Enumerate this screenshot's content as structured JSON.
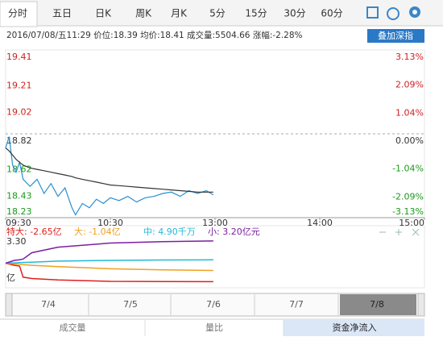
{
  "tabs": [
    "分时",
    "五日",
    "日K",
    "周K",
    "月K",
    "5分",
    "15分",
    "30分",
    "60分"
  ],
  "info": "2016/07/08/五11:29 价位:18.39 均价:18.41 成交量:5504.66 涨幅:-2.28%",
  "overlay_button": "叠加深指",
  "chart_data": [
    {
      "type": "line",
      "x": [
        0,
        2,
        4,
        6,
        8,
        10,
        14,
        18,
        22,
        26,
        30,
        34,
        38,
        40,
        44,
        48,
        52,
        56,
        60,
        65,
        70,
        75,
        80,
        85,
        90,
        95,
        100,
        105,
        110,
        115,
        119
      ],
      "xlim": [
        0,
        240
      ],
      "xticks": [
        {
          "value": 0,
          "label": "09:30"
        },
        {
          "value": 60,
          "label": "10:30"
        },
        {
          "value": 120,
          "label": "13:00"
        },
        {
          "value": 180,
          "label": "14:00"
        },
        {
          "value": 240,
          "label": "15:00"
        }
      ],
      "ylim": [
        18.23,
        19.41
      ],
      "yticks": [
        19.41,
        19.21,
        19.02,
        18.82,
        18.62,
        18.43,
        18.23
      ],
      "y2lim": [
        -3.13,
        3.13
      ],
      "y2ticks": [
        {
          "value": 3.13,
          "label": "3.13%"
        },
        {
          "value": 2.09,
          "label": "2.09%"
        },
        {
          "value": 1.04,
          "label": "1.04%"
        },
        {
          "value": 0,
          "label": "0.00%"
        },
        {
          "value": -1.04,
          "label": "-1.04%"
        },
        {
          "value": -2.09,
          "label": "-2.09%"
        },
        {
          "value": -3.13,
          "label": "-3.13%"
        }
      ],
      "series": [
        {
          "name": "价位",
          "color": "#2b8fd0",
          "values": [
            18.72,
            18.8,
            18.6,
            18.55,
            18.62,
            18.5,
            18.45,
            18.5,
            18.4,
            18.47,
            18.38,
            18.44,
            18.3,
            18.25,
            18.33,
            18.3,
            18.36,
            18.33,
            18.37,
            18.35,
            18.38,
            18.34,
            18.37,
            18.38,
            18.4,
            18.41,
            18.38,
            18.42,
            18.4,
            18.42,
            18.39
          ]
        },
        {
          "name": "均价",
          "color": "#333333",
          "values": [
            18.72,
            18.7,
            18.67,
            18.64,
            18.62,
            18.6,
            18.58,
            18.57,
            18.56,
            18.55,
            18.54,
            18.53,
            18.52,
            18.51,
            18.5,
            18.49,
            18.48,
            18.47,
            18.46,
            18.455,
            18.45,
            18.445,
            18.44,
            18.435,
            18.43,
            18.425,
            18.42,
            18.415,
            18.41,
            18.41,
            18.41
          ]
        }
      ]
    },
    {
      "type": "line",
      "x": [
        0,
        5,
        8,
        10,
        15,
        30,
        60,
        90,
        119
      ],
      "xlim": [
        0,
        240
      ],
      "ylim": [
        -3.3,
        3.3
      ],
      "yticks": [
        {
          "value": 3.3,
          "label": "3.30"
        }
      ],
      "y_unit": "亿",
      "series": [
        {
          "name": "特大: -2.65亿",
          "color": "#e0201c",
          "values": [
            0,
            -0.3,
            -0.4,
            -2.0,
            -2.2,
            -2.4,
            -2.6,
            -2.63,
            -2.65
          ]
        },
        {
          "name": "大: -1.04亿",
          "color": "#f0a020",
          "values": [
            0,
            -0.1,
            -0.15,
            -0.2,
            -0.3,
            -0.5,
            -0.8,
            -0.95,
            -1.04
          ]
        },
        {
          "name": "中: 4.90千万",
          "color": "#22b8d8",
          "values": [
            0,
            0.05,
            0.08,
            0.1,
            0.15,
            0.3,
            0.4,
            0.46,
            0.49
          ]
        },
        {
          "name": "小: 3.20亿元",
          "color": "#7a1fa2",
          "values": [
            0,
            0.4,
            0.5,
            0.6,
            1.5,
            2.3,
            2.9,
            3.1,
            3.2
          ]
        }
      ]
    }
  ],
  "navigator": {
    "dates": [
      "7/4",
      "7/5",
      "7/6",
      "7/7",
      "7/8"
    ]
  },
  "bottom_tabs": [
    "成交量",
    "量比",
    "资金净流入"
  ]
}
